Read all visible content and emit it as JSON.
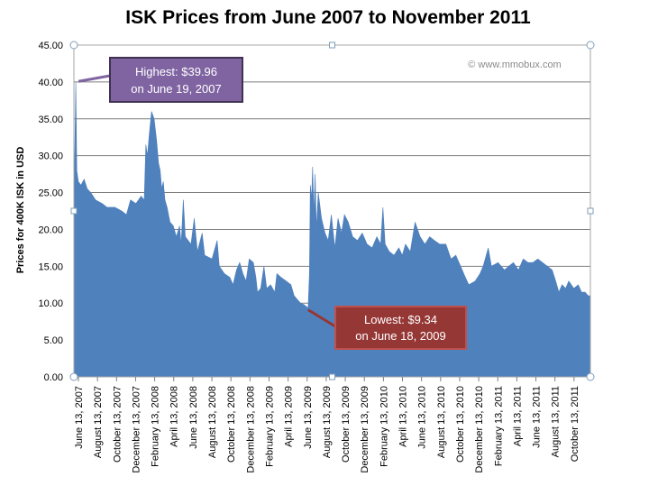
{
  "chart_data": {
    "type": "area",
    "title": "ISK Prices from June 2007 to November 2011",
    "xlabel": "",
    "ylabel": "Prices for 400K ISK in USD",
    "ylim": [
      0,
      45
    ],
    "yticks": [
      "0.00",
      "5.00",
      "10.00",
      "15.00",
      "20.00",
      "25.00",
      "30.00",
      "35.00",
      "40.00",
      "45.00"
    ],
    "xticks": [
      "June 13, 2007",
      "August 13, 2007",
      "October 13, 2007",
      "December 13, 2007",
      "February 13, 2008",
      "April 13, 2008",
      "June 13, 2008",
      "August 13, 2008",
      "October 13, 2008",
      "December 13, 2008",
      "February 13, 2009",
      "April 13, 2009",
      "June 13, 2009",
      "August 13, 2009",
      "October 13, 2009",
      "December 13, 2009",
      "February 13, 2010",
      "April 13, 2010",
      "June 13, 2010",
      "August 13, 2010",
      "October 13, 2010",
      "December 13, 2010",
      "February 13, 2011",
      "April 13, 2011",
      "June 13, 2011",
      "August 13, 2011",
      "October 13, 2011"
    ],
    "grid": true,
    "series_color": "#4f81bd",
    "x_range": [
      "2007-06-13",
      "2011-11-22"
    ],
    "series": [
      {
        "points": [
          [
            "2007-06-13",
            22.5
          ],
          [
            "2007-06-19",
            39.96
          ],
          [
            "2007-06-22",
            28.0
          ],
          [
            "2007-06-27",
            26.5
          ],
          [
            "2007-07-05",
            26.0
          ],
          [
            "2007-07-15",
            26.8
          ],
          [
            "2007-07-25",
            25.5
          ],
          [
            "2007-08-05",
            25.0
          ],
          [
            "2007-08-20",
            24.0
          ],
          [
            "2007-09-10",
            23.5
          ],
          [
            "2007-09-25",
            23.0
          ],
          [
            "2007-10-20",
            23.0
          ],
          [
            "2007-11-10",
            22.5
          ],
          [
            "2007-11-25",
            22.0
          ],
          [
            "2007-12-08",
            24.0
          ],
          [
            "2007-12-25",
            23.5
          ],
          [
            "2008-01-10",
            24.5
          ],
          [
            "2008-01-20",
            24.0
          ],
          [
            "2008-01-25",
            31.5
          ],
          [
            "2008-01-30",
            30.0
          ],
          [
            "2008-02-05",
            33.0
          ],
          [
            "2008-02-12",
            36.0
          ],
          [
            "2008-02-20",
            35.0
          ],
          [
            "2008-02-28",
            32.0
          ],
          [
            "2008-03-05",
            29.0
          ],
          [
            "2008-03-10",
            28.0
          ],
          [
            "2008-03-15",
            25.5
          ],
          [
            "2008-03-20",
            26.5
          ],
          [
            "2008-03-25",
            24.0
          ],
          [
            "2008-04-01",
            23.0
          ],
          [
            "2008-04-10",
            21.0
          ],
          [
            "2008-04-20",
            20.5
          ],
          [
            "2008-04-30",
            19.0
          ],
          [
            "2008-05-10",
            20.5
          ],
          [
            "2008-05-15",
            18.0
          ],
          [
            "2008-05-22",
            24.0
          ],
          [
            "2008-05-28",
            19.0
          ],
          [
            "2008-06-15",
            18.0
          ],
          [
            "2008-06-25",
            21.5
          ],
          [
            "2008-07-05",
            17.0
          ],
          [
            "2008-07-20",
            19.5
          ],
          [
            "2008-07-28",
            16.5
          ],
          [
            "2008-08-20",
            16.0
          ],
          [
            "2008-09-05",
            18.5
          ],
          [
            "2008-09-12",
            15.0
          ],
          [
            "2008-09-28",
            14.0
          ],
          [
            "2008-10-15",
            13.5
          ],
          [
            "2008-10-25",
            12.5
          ],
          [
            "2008-11-05",
            14.5
          ],
          [
            "2008-11-15",
            15.5
          ],
          [
            "2008-11-25",
            14.0
          ],
          [
            "2008-12-05",
            13.0
          ],
          [
            "2008-12-15",
            16.0
          ],
          [
            "2008-12-28",
            15.5
          ],
          [
            "2009-01-05",
            13.5
          ],
          [
            "2009-01-10",
            11.5
          ],
          [
            "2009-01-20",
            12.0
          ],
          [
            "2009-01-30",
            15.0
          ],
          [
            "2009-02-08",
            12.0
          ],
          [
            "2009-02-20",
            12.5
          ],
          [
            "2009-03-05",
            11.5
          ],
          [
            "2009-03-12",
            14.0
          ],
          [
            "2009-03-25",
            13.5
          ],
          [
            "2009-04-10",
            13.0
          ],
          [
            "2009-04-25",
            12.5
          ],
          [
            "2009-05-05",
            11.0
          ],
          [
            "2009-05-15",
            10.5
          ],
          [
            "2009-05-25",
            10.0
          ],
          [
            "2009-06-05",
            9.8
          ],
          [
            "2009-06-18",
            9.34
          ],
          [
            "2009-06-22",
            14.0
          ],
          [
            "2009-06-25",
            26.0
          ],
          [
            "2009-06-29",
            24.0
          ],
          [
            "2009-07-02",
            28.5
          ],
          [
            "2009-07-06",
            22.0
          ],
          [
            "2009-07-10",
            27.5
          ],
          [
            "2009-07-14",
            20.0
          ],
          [
            "2009-07-20",
            25.0
          ],
          [
            "2009-07-30",
            21.5
          ],
          [
            "2009-08-10",
            19.5
          ],
          [
            "2009-08-20",
            18.5
          ],
          [
            "2009-08-30",
            22.0
          ],
          [
            "2009-09-10",
            17.5
          ],
          [
            "2009-09-20",
            21.5
          ],
          [
            "2009-10-01",
            19.5
          ],
          [
            "2009-10-10",
            22.0
          ],
          [
            "2009-10-22",
            21.0
          ],
          [
            "2009-11-05",
            19.0
          ],
          [
            "2009-11-20",
            18.5
          ],
          [
            "2009-12-05",
            19.5
          ],
          [
            "2009-12-20",
            18.0
          ],
          [
            "2010-01-05",
            17.5
          ],
          [
            "2010-01-20",
            19.0
          ],
          [
            "2010-02-01",
            18.0
          ],
          [
            "2010-02-08",
            23.0
          ],
          [
            "2010-02-15",
            18.0
          ],
          [
            "2010-02-28",
            17.0
          ],
          [
            "2010-03-15",
            16.5
          ],
          [
            "2010-03-30",
            17.5
          ],
          [
            "2010-04-10",
            16.5
          ],
          [
            "2010-04-20",
            18.0
          ],
          [
            "2010-05-05",
            17.0
          ],
          [
            "2010-05-20",
            21.0
          ],
          [
            "2010-06-05",
            19.0
          ],
          [
            "2010-06-20",
            18.0
          ],
          [
            "2010-07-05",
            19.0
          ],
          [
            "2010-07-20",
            18.5
          ],
          [
            "2010-08-05",
            18.0
          ],
          [
            "2010-08-25",
            18.0
          ],
          [
            "2010-09-10",
            16.0
          ],
          [
            "2010-09-25",
            16.5
          ],
          [
            "2010-10-10",
            15.0
          ],
          [
            "2010-10-25",
            13.5
          ],
          [
            "2010-11-05",
            12.5
          ],
          [
            "2010-11-25",
            13.0
          ],
          [
            "2010-12-10",
            14.0
          ],
          [
            "2010-12-20",
            15.0
          ],
          [
            "2011-01-05",
            17.5
          ],
          [
            "2011-01-15",
            15.0
          ],
          [
            "2011-02-05",
            15.5
          ],
          [
            "2011-02-25",
            14.5
          ],
          [
            "2011-03-10",
            15.0
          ],
          [
            "2011-03-25",
            15.5
          ],
          [
            "2011-04-10",
            14.5
          ],
          [
            "2011-04-25",
            16.0
          ],
          [
            "2011-05-10",
            15.5
          ],
          [
            "2011-05-25",
            15.5
          ],
          [
            "2011-06-10",
            16.0
          ],
          [
            "2011-06-25",
            15.5
          ],
          [
            "2011-07-10",
            15.0
          ],
          [
            "2011-07-25",
            14.5
          ],
          [
            "2011-08-05",
            13.0
          ],
          [
            "2011-08-15",
            11.5
          ],
          [
            "2011-08-25",
            12.5
          ],
          [
            "2011-09-05",
            12.0
          ],
          [
            "2011-09-15",
            13.0
          ],
          [
            "2011-10-01",
            12.0
          ],
          [
            "2011-10-15",
            12.5
          ],
          [
            "2011-10-25",
            11.5
          ],
          [
            "2011-11-05",
            11.5
          ],
          [
            "2011-11-15",
            11.0
          ],
          [
            "2011-11-22",
            11.0
          ]
        ]
      }
    ],
    "annotations": {
      "highest": {
        "line1": "Highest:  $39.96",
        "line2": "on June 19, 2007",
        "x": "2007-06-19",
        "y": 39.96,
        "fill": "#8064a2",
        "border": "#403152"
      },
      "lowest": {
        "line1": "Lowest: $9.34",
        "line2": "on June 18, 2009",
        "x": "2009-06-18",
        "y": 9.34,
        "fill": "#953735",
        "border": "#c0504d"
      }
    },
    "watermark": "© www.mmobux.com"
  }
}
